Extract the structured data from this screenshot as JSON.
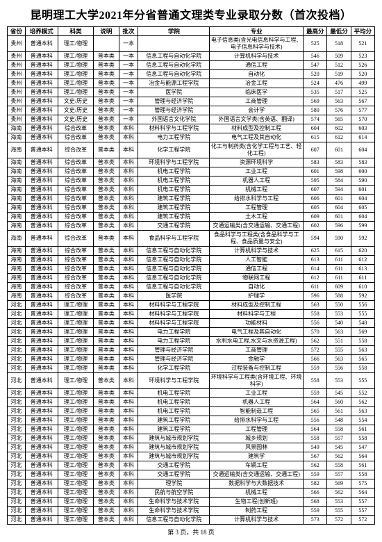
{
  "title": "昆明理工大学2021年分省普通文理类专业录取分数（首次投档）",
  "footer": "第 3 页，共 18 页",
  "columns": [
    "省份",
    "培养模式",
    "科类",
    "说明",
    "批次",
    "学院",
    "专业",
    "最高分",
    "最低分",
    "平均分"
  ],
  "rows": [
    [
      "贵州",
      "普通本科",
      "理工/物理",
      "",
      "一本",
      "",
      "电子信息类(含光电信息科学与工程、电子信息科学与技术)",
      "525",
      "518",
      "521"
    ],
    [
      "贵州",
      "普通本科",
      "理工/物理",
      "普本类",
      "一本",
      "信息工程与自动化学院",
      "计算机科学与技术",
      "546",
      "509",
      "523"
    ],
    [
      "贵州",
      "普通本科",
      "理工/物理",
      "普本类",
      "一本",
      "信息工程与自动化学院",
      "通信工程",
      "547",
      "512",
      "526"
    ],
    [
      "贵州",
      "普通本科",
      "理工/物理",
      "普本类",
      "一本",
      "信息工程与自动化学院",
      "自动化",
      "520",
      "519",
      "520"
    ],
    [
      "贵州",
      "普通本科",
      "理工/物理",
      "普本类",
      "一本",
      "冶金与能源工程学院",
      "冶金工程",
      "524",
      "476",
      "499"
    ],
    [
      "贵州",
      "普通本科",
      "理工/物理",
      "普本类",
      "一本",
      "医学院",
      "临床医学",
      "535",
      "517",
      "525"
    ],
    [
      "贵州",
      "普通本科",
      "文史/历史",
      "普本类",
      "一本",
      "管理与经济学院",
      "工商管理",
      "569",
      "563",
      "567"
    ],
    [
      "贵州",
      "普通本科",
      "文史/历史",
      "普本类",
      "一本",
      "管理与经济学院",
      "会计学",
      "580",
      "576",
      "577"
    ],
    [
      "贵州",
      "普通本科",
      "文史/历史",
      "普本类",
      "一本",
      "外国语言文化学院",
      "外国语言文学类(含英语、翻译)",
      "574",
      "565",
      "570"
    ],
    [
      "海南",
      "普通本科",
      "综合改革",
      "普本类",
      "本科",
      "材料科学与工程学院",
      "材料成型及控制工程",
      "604",
      "602",
      "603"
    ],
    [
      "海南",
      "普通本科",
      "综合改革",
      "普本类",
      "本科",
      "电力工程学院",
      "电气工程及其自动化",
      "615",
      "612",
      "614"
    ],
    [
      "海南",
      "普通本科",
      "综合改革",
      "普本类",
      "本科",
      "化学工程学院",
      "化工与制药类(含化学工程与工艺、轻化工程)",
      "607",
      "601",
      "604"
    ],
    [
      "海南",
      "普通本科",
      "综合改革",
      "普本类",
      "本科",
      "环境科学与工程学院",
      "资源环境科学",
      "583",
      "583",
      "583"
    ],
    [
      "海南",
      "普通本科",
      "综合改革",
      "普本类",
      "本科",
      "机电工程学院",
      "工业工程",
      "601",
      "598",
      "600"
    ],
    [
      "海南",
      "普通本科",
      "综合改革",
      "普本类",
      "本科",
      "机电工程学院",
      "机器人工程",
      "595",
      "584",
      "590"
    ],
    [
      "海南",
      "普通本科",
      "综合改革",
      "普本类",
      "本科",
      "机电工程学院",
      "机械工程",
      "607",
      "594",
      "601"
    ],
    [
      "海南",
      "普通本科",
      "综合改革",
      "普本类",
      "本科",
      "建筑工程学院",
      "给排水科学与工程",
      "606",
      "601",
      "604"
    ],
    [
      "海南",
      "普通本科",
      "综合改革",
      "普本类",
      "本科",
      "建筑工程学院",
      "工程管理",
      "605",
      "604",
      "605"
    ],
    [
      "海南",
      "普通本科",
      "综合改革",
      "普本类",
      "本科",
      "建筑工程学院",
      "土木工程",
      "609",
      "601",
      "604"
    ],
    [
      "海南",
      "普通本科",
      "综合改革",
      "普本类",
      "本科",
      "交通工程学院",
      "交通运输类(含交通运输、交通工程)",
      "602",
      "596",
      "599"
    ],
    [
      "海南",
      "普通本科",
      "综合改革",
      "普本类",
      "本科",
      "食品科学与工程学院",
      "食品科学与工程类(含食品科学与工程、食品质量与安全)",
      "594",
      "590",
      "592"
    ],
    [
      "海南",
      "普通本科",
      "综合改革",
      "普本类",
      "本科",
      "信息工程与自动化学院",
      "计算机科学与技术",
      "625",
      "615",
      "620"
    ],
    [
      "海南",
      "普通本科",
      "综合改革",
      "普本类",
      "本科",
      "信息工程与自动化学院",
      "人工智能",
      "613",
      "611",
      "612"
    ],
    [
      "海南",
      "普通本科",
      "综合改革",
      "普本类",
      "本科",
      "信息工程与自动化学院",
      "通信工程",
      "614",
      "611",
      "613"
    ],
    [
      "海南",
      "普通本科",
      "综合改革",
      "普本类",
      "本科",
      "信息工程与自动化学院",
      "物联网工程",
      "612",
      "611",
      "611"
    ],
    [
      "海南",
      "普通本科",
      "综合改革",
      "普本类",
      "本科",
      "信息工程与自动化学院",
      "自动化",
      "611",
      "609",
      "610"
    ],
    [
      "海南",
      "普通本科",
      "综合改革",
      "普本类",
      "本科",
      "医学院",
      "护理学",
      "596",
      "588",
      "592"
    ],
    [
      "河北",
      "普通本科",
      "理工/物理",
      "普本类",
      "本科",
      "材料科学与工程学院",
      "材料成型及控制工程",
      "563",
      "550",
      "556"
    ],
    [
      "河北",
      "普通本科",
      "理工/物理",
      "普本类",
      "本科",
      "材料科学与工程学院",
      "材料科学与工程",
      "558",
      "553",
      "555"
    ],
    [
      "河北",
      "普通本科",
      "理工/物理",
      "普本类",
      "本科",
      "材料科学与工程学院",
      "功能材料",
      "556",
      "540",
      "548"
    ],
    [
      "河北",
      "普通本科",
      "理工/物理",
      "普本类",
      "本科",
      "电力工程学院",
      "电气工程及其自动化",
      "570",
      "563",
      "569"
    ],
    [
      "河北",
      "普通本科",
      "理工/物理",
      "普本类",
      "本科",
      "电力工程学院",
      "水利水电工程,水文与水资源工程)",
      "562",
      "551",
      "558"
    ],
    [
      "河北",
      "普通本科",
      "理工/物理",
      "普本类",
      "本科",
      "管理与经济学院",
      "工商管理",
      "572",
      "555",
      "563"
    ],
    [
      "河北",
      "普通本科",
      "理工/物理",
      "普本类",
      "本科",
      "管理与经济学院",
      "金融学",
      "566",
      "563",
      "565"
    ],
    [
      "河北",
      "普通本科",
      "理工/物理",
      "普本类",
      "本科",
      "化学工程学院",
      "过程装备与控制工程",
      "559",
      "556",
      "558"
    ],
    [
      "河北",
      "普通本科",
      "理工/物理",
      "普本类",
      "本科",
      "环境科学与工程学院",
      "环境科学与工程类(含环境工程、环境科学)",
      "558",
      "553",
      "555"
    ],
    [
      "河北",
      "普通本科",
      "理工/物理",
      "普本类",
      "本科",
      "机电工程学院",
      "工业工程",
      "559",
      "545",
      "552"
    ],
    [
      "河北",
      "普通本科",
      "理工/物理",
      "普本类",
      "本科",
      "机电工程学院",
      "机器人工程",
      "564",
      "560",
      "562"
    ],
    [
      "河北",
      "普通本科",
      "理工/物理",
      "普本类",
      "本科",
      "机电工程学院",
      "智能制造工程",
      "565",
      "561",
      "563"
    ],
    [
      "河北",
      "普通本科",
      "理工/物理",
      "普本类",
      "本科",
      "建筑工程学院",
      "给排水科学与工程",
      "556",
      "548",
      "554"
    ],
    [
      "河北",
      "普通本科",
      "理工/物理",
      "普本类",
      "本科",
      "建筑工程学院",
      "工程管理",
      "564",
      "558",
      "561"
    ],
    [
      "河北",
      "普通本科",
      "理工/物理",
      "普本类",
      "本科",
      "建筑与城市规划学院",
      "城乡规划",
      "558",
      "557",
      "558"
    ],
    [
      "河北",
      "普通本科",
      "理工/物理",
      "普本类",
      "本科",
      "建筑与城市规划学院",
      "风景园林",
      "549",
      "545",
      "547"
    ],
    [
      "河北",
      "普通本科",
      "理工/物理",
      "普本类",
      "本科",
      "建筑与城市规划学院",
      "建筑学",
      "567",
      "562",
      "564"
    ],
    [
      "河北",
      "普通本科",
      "理工/物理",
      "普本类",
      "本科",
      "交通工程学院",
      "车辆工程",
      "562",
      "558",
      "561"
    ],
    [
      "河北",
      "普通本科",
      "理工/物理",
      "普本类",
      "本科",
      "交通工程学院",
      "交通运输类(含交通运输、交通工程)",
      "559",
      "557",
      "558"
    ],
    [
      "河北",
      "普通本科",
      "理工/物理",
      "普本类",
      "本科",
      "理学院",
      "数据科学与大数据技术",
      "582",
      "569",
      "575"
    ],
    [
      "河北",
      "普通本科",
      "理工/物理",
      "普本类",
      "本科",
      "民航与航空学院",
      "机械工程",
      "566",
      "562",
      "564"
    ],
    [
      "河北",
      "普通本科",
      "理工/物理",
      "普本类",
      "本科",
      "生命科学与技术学院",
      "生物工程(创新班)",
      "568",
      "553",
      "557"
    ],
    [
      "河北",
      "普通本科",
      "理工/物理",
      "普本类",
      "本科",
      "生命科学与技术学院",
      "制药工程",
      "559",
      "555",
      "557"
    ],
    [
      "河北",
      "普通本科",
      "理工/物理",
      "普本类",
      "本科",
      "信息工程与自动化学院",
      "计算机科学与技术",
      "573",
      "572",
      "572"
    ]
  ]
}
